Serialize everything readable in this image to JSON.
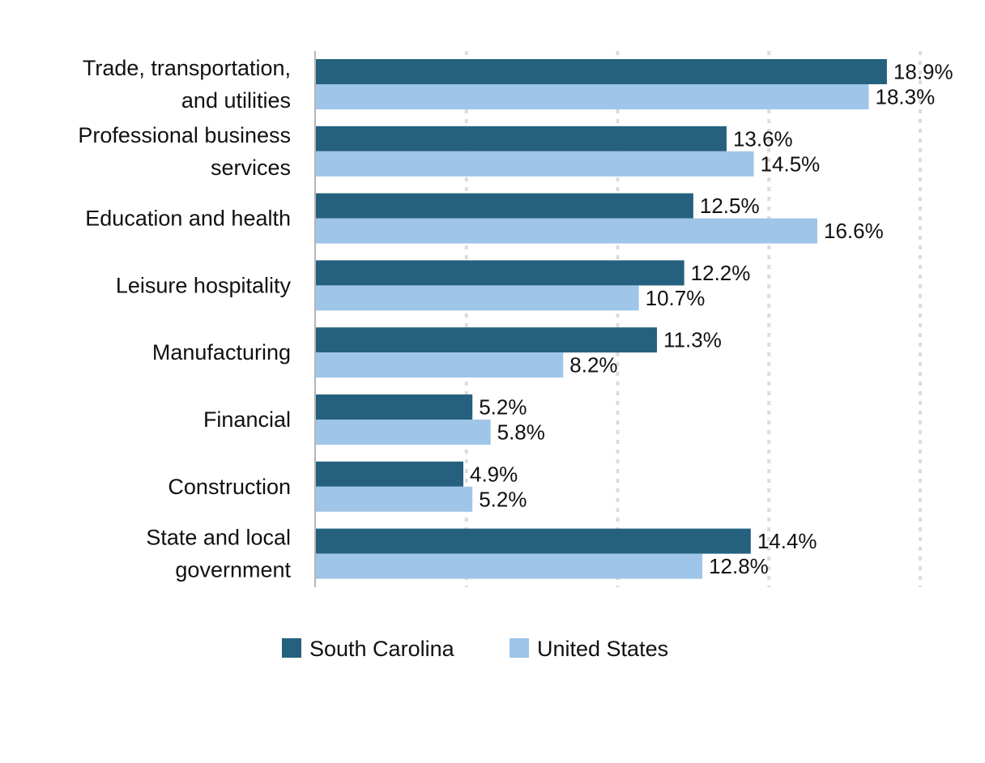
{
  "chart_data": {
    "type": "bar",
    "orientation": "horizontal",
    "categories": [
      [
        "Trade, transportation,",
        "and utilities"
      ],
      [
        "Professional business",
        "services"
      ],
      [
        "Education and health"
      ],
      [
        "Leisure hospitality"
      ],
      [
        "Manufacturing"
      ],
      [
        "Financial"
      ],
      [
        "Construction"
      ],
      [
        "State and local",
        "government"
      ]
    ],
    "series": [
      {
        "name": "South Carolina",
        "color": "#25617f",
        "values": [
          18.9,
          13.6,
          12.5,
          12.2,
          11.3,
          5.2,
          4.9,
          14.4
        ],
        "labels": [
          "18.9%",
          "13.6%",
          "12.5%",
          "12.2%",
          "11.3%",
          "5.2%",
          "4.9%",
          "14.4%"
        ]
      },
      {
        "name": "United States",
        "color": "#9fc5e8",
        "values": [
          18.3,
          14.5,
          16.6,
          10.7,
          8.2,
          5.8,
          5.2,
          12.8
        ],
        "labels": [
          "18.3%",
          "14.5%",
          "16.6%",
          "10.7%",
          "8.2%",
          "5.8%",
          "5.2%",
          "12.8%"
        ]
      }
    ],
    "xlim": [
      0,
      20
    ],
    "x_gridlines": [
      5,
      10,
      15,
      20
    ],
    "grid": true,
    "title": "",
    "xlabel": "",
    "ylabel": "",
    "legend_position": "bottom"
  }
}
